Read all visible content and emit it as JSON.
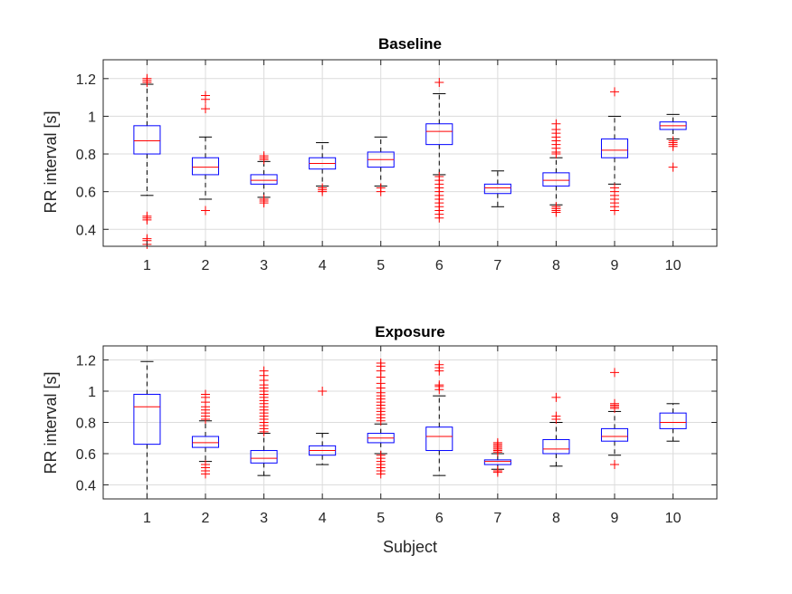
{
  "chart_data": [
    {
      "type": "boxplot",
      "title": "Baseline",
      "xlabel": "",
      "ylabel": "RR interval [s]",
      "categories": [
        "1",
        "2",
        "3",
        "4",
        "5",
        "6",
        "7",
        "8",
        "9",
        "10"
      ],
      "ylim": [
        0.31,
        1.3
      ],
      "yticks": [
        0.4,
        0.6,
        0.8,
        1,
        1.2
      ],
      "ytick_labels": [
        "0.4",
        "0.6",
        "0.8",
        "1",
        "1.2"
      ],
      "grid": true,
      "colors": {
        "box": "#0000ff",
        "median": "#ff0000",
        "whisker": "#000000",
        "outlier": "#ff0000",
        "grid": "#dcdcdc",
        "axis": "#262626"
      },
      "boxes": [
        {
          "q1": 0.8,
          "median": 0.87,
          "q3": 0.95,
          "whisker_low": 0.58,
          "whisker_high": 1.17,
          "outliers": [
            0.32,
            0.34,
            0.35,
            0.45,
            0.46,
            0.47,
            1.18,
            1.19,
            1.2
          ]
        },
        {
          "q1": 0.69,
          "median": 0.73,
          "q3": 0.78,
          "whisker_low": 0.56,
          "whisker_high": 0.89,
          "outliers": [
            0.5,
            1.04,
            1.09,
            1.11
          ]
        },
        {
          "q1": 0.64,
          "median": 0.66,
          "q3": 0.69,
          "whisker_low": 0.57,
          "whisker_high": 0.76,
          "outliers": [
            0.54,
            0.55,
            0.56,
            0.77,
            0.78,
            0.79
          ]
        },
        {
          "q1": 0.72,
          "median": 0.75,
          "q3": 0.78,
          "whisker_low": 0.63,
          "whisker_high": 0.86,
          "outliers": [
            0.6,
            0.61,
            0.62
          ]
        },
        {
          "q1": 0.73,
          "median": 0.77,
          "q3": 0.81,
          "whisker_low": 0.63,
          "whisker_high": 0.89,
          "outliers": [
            0.6,
            0.62
          ]
        },
        {
          "q1": 0.85,
          "median": 0.92,
          "q3": 0.96,
          "whisker_low": 0.69,
          "whisker_high": 1.12,
          "outliers": [
            0.46,
            0.48,
            0.5,
            0.52,
            0.54,
            0.56,
            0.58,
            0.6,
            0.62,
            0.64,
            0.66,
            0.68,
            1.18
          ]
        },
        {
          "q1": 0.59,
          "median": 0.62,
          "q3": 0.64,
          "whisker_low": 0.52,
          "whisker_high": 0.71,
          "outliers": []
        },
        {
          "q1": 0.63,
          "median": 0.66,
          "q3": 0.7,
          "whisker_low": 0.53,
          "whisker_high": 0.78,
          "outliers": [
            0.49,
            0.5,
            0.51,
            0.52,
            0.8,
            0.81,
            0.83,
            0.85,
            0.87,
            0.89,
            0.91,
            0.93,
            0.96
          ]
        },
        {
          "q1": 0.78,
          "median": 0.82,
          "q3": 0.88,
          "whisker_low": 0.64,
          "whisker_high": 1.0,
          "outliers": [
            0.5,
            0.52,
            0.54,
            0.56,
            0.58,
            0.6,
            0.62,
            1.13
          ]
        },
        {
          "q1": 0.93,
          "median": 0.95,
          "q3": 0.97,
          "whisker_low": 0.88,
          "whisker_high": 1.01,
          "outliers": [
            0.73,
            0.84,
            0.85,
            0.86,
            0.87
          ]
        }
      ]
    },
    {
      "type": "boxplot",
      "title": "Exposure",
      "xlabel": "Subject",
      "ylabel": "RR interval [s]",
      "categories": [
        "1",
        "2",
        "3",
        "4",
        "5",
        "6",
        "7",
        "8",
        "9",
        "10"
      ],
      "ylim": [
        0.31,
        1.29
      ],
      "yticks": [
        0.4,
        0.6,
        0.8,
        1,
        1.2
      ],
      "ytick_labels": [
        "0.4",
        "0.6",
        "0.8",
        "1",
        "1.2"
      ],
      "grid": true,
      "colors": {
        "box": "#0000ff",
        "median": "#ff0000",
        "whisker": "#000000",
        "outlier": "#ff0000",
        "grid": "#dcdcdc",
        "axis": "#262626"
      },
      "boxes": [
        {
          "q1": 0.66,
          "median": 0.9,
          "q3": 0.98,
          "whisker_low": 0.31,
          "whisker_high": 1.19,
          "outliers": []
        },
        {
          "q1": 0.64,
          "median": 0.67,
          "q3": 0.71,
          "whisker_low": 0.55,
          "whisker_high": 0.81,
          "outliers": [
            0.47,
            0.49,
            0.51,
            0.53,
            0.82,
            0.84,
            0.86,
            0.88,
            0.9,
            0.93,
            0.96,
            0.98
          ]
        },
        {
          "q1": 0.54,
          "median": 0.57,
          "q3": 0.62,
          "whisker_low": 0.46,
          "whisker_high": 0.73,
          "outliers": [
            0.74,
            0.76,
            0.78,
            0.8,
            0.82,
            0.84,
            0.86,
            0.88,
            0.9,
            0.92,
            0.94,
            0.96,
            0.98,
            1.0,
            1.02,
            1.04,
            1.07,
            1.1,
            1.13
          ]
        },
        {
          "q1": 0.59,
          "median": 0.62,
          "q3": 0.65,
          "whisker_low": 0.53,
          "whisker_high": 0.73,
          "outliers": [
            1.0
          ]
        },
        {
          "q1": 0.67,
          "median": 0.7,
          "q3": 0.73,
          "whisker_low": 0.6,
          "whisker_high": 0.79,
          "outliers": [
            0.47,
            0.49,
            0.51,
            0.53,
            0.55,
            0.57,
            0.59,
            0.81,
            0.83,
            0.85,
            0.87,
            0.89,
            0.91,
            0.93,
            0.95,
            0.97,
            0.99,
            1.02,
            1.05,
            1.09,
            1.13,
            1.16,
            1.18
          ]
        },
        {
          "q1": 0.62,
          "median": 0.71,
          "q3": 0.77,
          "whisker_low": 0.46,
          "whisker_high": 0.97,
          "outliers": [
            1.01,
            1.03,
            1.04,
            1.13,
            1.15,
            1.17
          ]
        },
        {
          "q1": 0.53,
          "median": 0.55,
          "q3": 0.56,
          "whisker_low": 0.5,
          "whisker_high": 0.6,
          "outliers": [
            0.48,
            0.49,
            0.61,
            0.62,
            0.63,
            0.64,
            0.65,
            0.66,
            0.67
          ]
        },
        {
          "q1": 0.6,
          "median": 0.63,
          "q3": 0.69,
          "whisker_low": 0.52,
          "whisker_high": 0.8,
          "outliers": [
            0.82,
            0.84,
            0.96
          ]
        },
        {
          "q1": 0.68,
          "median": 0.71,
          "q3": 0.76,
          "whisker_low": 0.59,
          "whisker_high": 0.87,
          "outliers": [
            0.53,
            0.89,
            0.9,
            0.91,
            0.92,
            1.12
          ]
        },
        {
          "q1": 0.76,
          "median": 0.8,
          "q3": 0.86,
          "whisker_low": 0.68,
          "whisker_high": 0.92,
          "outliers": []
        }
      ]
    }
  ]
}
